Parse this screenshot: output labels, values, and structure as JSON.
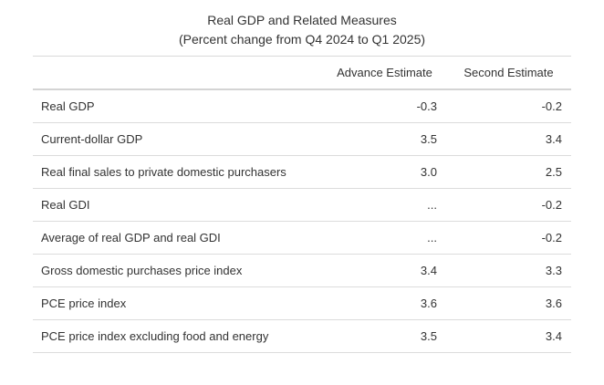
{
  "title": {
    "line1": "Real GDP and Related Measures",
    "line2": "(Percent change from Q4 2024 to Q1 2025)"
  },
  "table": {
    "headers": [
      "",
      "Advance Estimate",
      "Second Estimate"
    ],
    "rows": [
      {
        "label": "Real GDP",
        "advance": "-0.3",
        "second": "-0.2"
      },
      {
        "label": "Current-dollar GDP",
        "advance": "3.5",
        "second": "3.4"
      },
      {
        "label": "Real final sales to private domestic purchasers",
        "advance": "3.0",
        "second": "2.5"
      },
      {
        "label": "Real GDI",
        "advance": "...",
        "second": "-0.2"
      },
      {
        "label": "Average of real GDP and real GDI",
        "advance": "...",
        "second": "-0.2"
      },
      {
        "label": "Gross domestic purchases price index",
        "advance": "3.4",
        "second": "3.3"
      },
      {
        "label": "PCE price index",
        "advance": "3.6",
        "second": "3.6"
      },
      {
        "label": "PCE price index excluding food and energy",
        "advance": "3.5",
        "second": "3.4"
      }
    ]
  }
}
